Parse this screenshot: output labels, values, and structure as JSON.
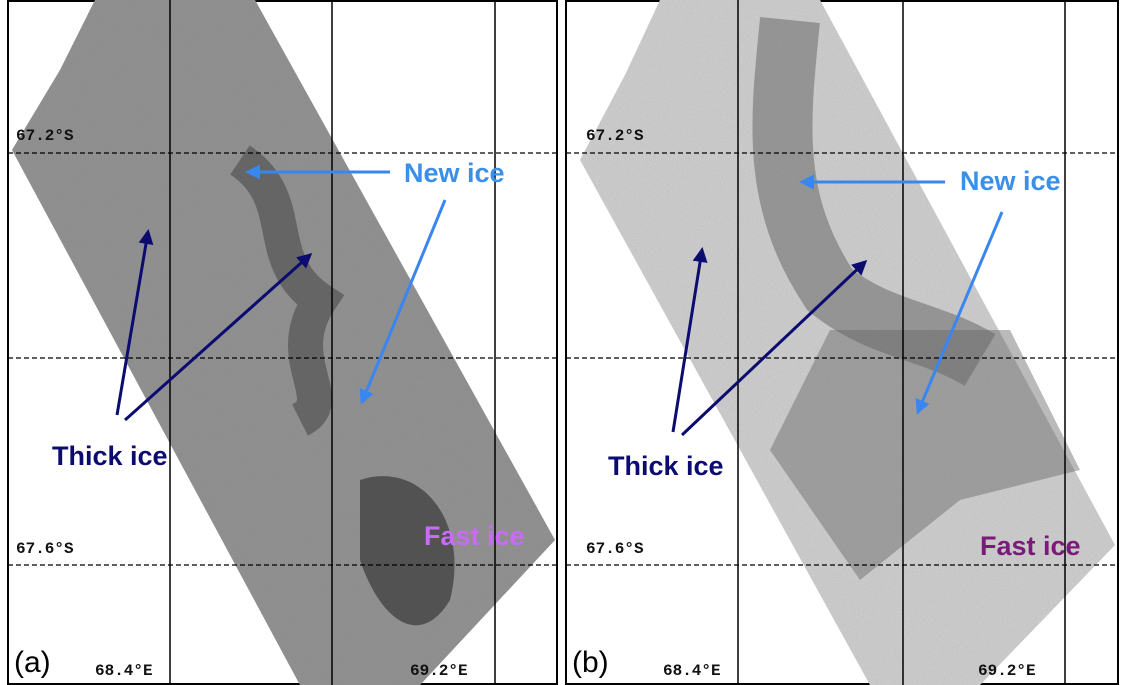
{
  "panels": [
    {
      "label": "(a)",
      "lat_labels": [
        "67.2°S",
        "67.6°S"
      ],
      "lon_labels": [
        "68.4°E",
        "69.2°E"
      ],
      "annotations": {
        "new_ice": "New ice",
        "thick_ice": "Thick ice",
        "fast_ice": "Fast ice"
      }
    },
    {
      "label": "(b)",
      "lat_labels": [
        "67.2°S",
        "67.6°S"
      ],
      "lon_labels": [
        "68.4°E",
        "69.2°E"
      ],
      "annotations": {
        "new_ice": "New ice",
        "thick_ice": "Thick ice",
        "fast_ice": "Fast ice"
      }
    }
  ]
}
